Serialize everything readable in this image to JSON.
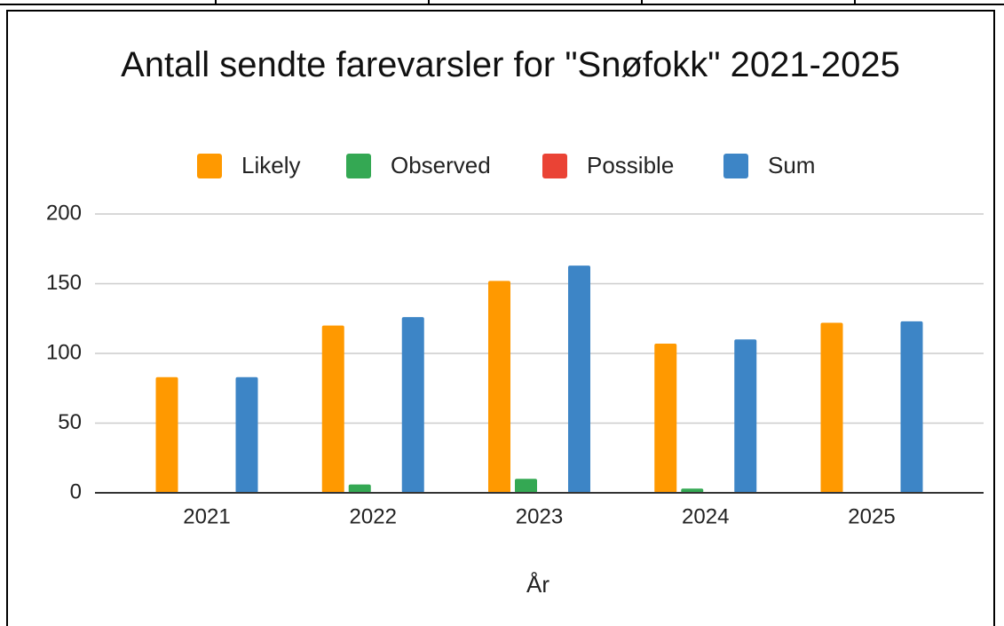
{
  "chart_data": {
    "type": "bar",
    "title": "Antall sendte farevarsler for \"Snøfokk\" 2021-2025",
    "x_label": "År",
    "categories": [
      "2021",
      "2022",
      "2023",
      "2024",
      "2025"
    ],
    "series": [
      {
        "name": "Likely",
        "color": "#ff9900",
        "values": [
          83,
          120,
          152,
          107,
          122
        ]
      },
      {
        "name": "Observed",
        "color": "#34a853",
        "values": [
          0,
          6,
          10,
          3,
          0
        ]
      },
      {
        "name": "Possible",
        "color": "#ea4335",
        "values": [
          0,
          0,
          0,
          0,
          0
        ]
      },
      {
        "name": "Sum",
        "color": "#3d85c6",
        "values": [
          83,
          126,
          163,
          110,
          123
        ]
      }
    ],
    "ylim": [
      0,
      200
    ],
    "yticks": [
      0,
      50,
      100,
      150,
      200
    ],
    "grid": true,
    "legend": "top"
  }
}
